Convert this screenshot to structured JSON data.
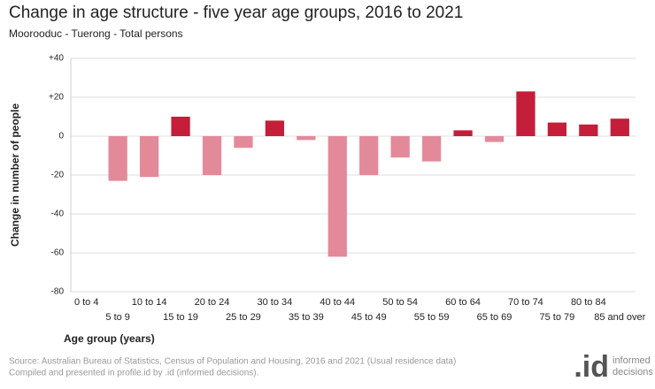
{
  "chart_data": {
    "type": "bar",
    "title": "Change in age structure - five year age groups, 2016 to 2021",
    "subtitle": "Moorooduc - Tuerong - Total persons",
    "x_label": "Age group (years)",
    "y_label": "Change in number of people",
    "categories": [
      "0 to 4",
      "5 to 9",
      "10 to 14",
      "15 to 19",
      "20 to 24",
      "25 to 29",
      "30 to 34",
      "35 to 39",
      "40 to 44",
      "45 to 49",
      "50 to 54",
      "55 to 59",
      "60 to 64",
      "65 to 69",
      "70 to 74",
      "75 to 79",
      "80 to 84",
      "85 and over"
    ],
    "values": [
      0,
      -23,
      -21,
      10,
      -20,
      -6,
      8,
      -2,
      -62,
      -20,
      -11,
      -13,
      3,
      -3,
      23,
      7,
      6,
      9
    ],
    "positive_color": "#c41e3a",
    "negative_color": "#e38a9a",
    "ylim": [
      -80,
      40
    ],
    "yticks": [
      {
        "value": 40,
        "label": "+40"
      },
      {
        "value": 20,
        "label": "+20"
      },
      0,
      -20,
      -40,
      -60,
      -80
    ],
    "grid": true
  },
  "source": [
    "Source: Australian Bureau of Statistics, Census of Population and Housing, 2016 and 2021 (Usual residence data)",
    "Compiled and presented in profile.id by .id (informed decisions)."
  ],
  "logo": {
    "mark": ".id",
    "words": [
      "informed",
      "decisions"
    ]
  }
}
